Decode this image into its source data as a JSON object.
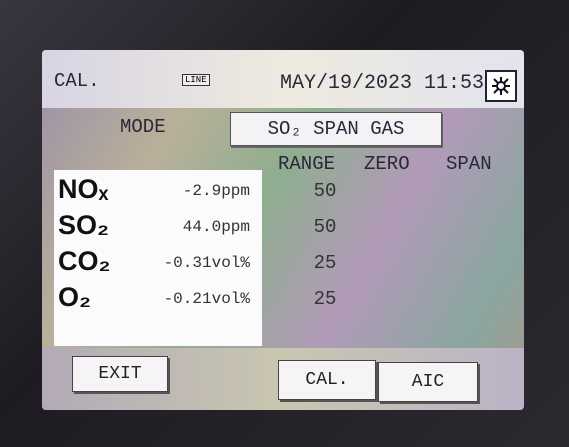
{
  "header": {
    "screen": "CAL.",
    "indicator": "LINE",
    "datetime": "MAY/19/2023 11:53"
  },
  "mode": {
    "label": "MODE",
    "value": "SO₂ SPAN GAS"
  },
  "table": {
    "columns": [
      "RANGE",
      "ZERO",
      "SPAN"
    ],
    "rows": [
      [
        "NOₓ",
        "-2.9ppm",
        "50"
      ],
      [
        "SO₂",
        "44.0ppm",
        "50"
      ],
      [
        "CO₂",
        "-0.31vol%",
        "25"
      ],
      [
        "O₂",
        "-0.21vol%",
        "25"
      ]
    ]
  },
  "buttons": [
    "EXIT",
    "CAL.",
    "AIC"
  ]
}
